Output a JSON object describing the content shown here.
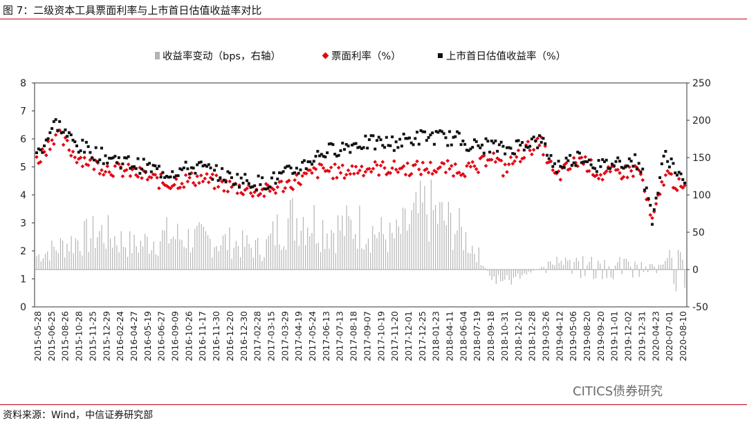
{
  "header": {
    "title": "图 7：二级资本工具票面利率与上市首日估值收益率对比"
  },
  "footer": {
    "source": "资料来源：Wind，中信证券研究部",
    "watermark": "CITICS债券研究"
  },
  "colors": {
    "bar": "#b4b4b4",
    "coupon": "#e30613",
    "valuation": "#111111",
    "accent": "#c0001c"
  },
  "chart_data": {
    "type": "bar+scatter",
    "legend": [
      "收益率变动（bps，右轴）",
      "票面利率（%）",
      "上市首日估值收益率（%）"
    ],
    "y_left": {
      "ticks": [
        "0",
        "1",
        "2",
        "3",
        "4",
        "5",
        "6",
        "7",
        "8"
      ],
      "lim": [
        0,
        8
      ]
    },
    "y_right": {
      "ticks": [
        "250",
        "200",
        "150",
        "100",
        "50",
        "0",
        "-50"
      ],
      "lim": [
        -50,
        250
      ]
    },
    "x_ticks": [
      "2015-05-28",
      "2015-06-25",
      "2015-08-26",
      "2015-10-28",
      "2015-11-25",
      "2015-12-29",
      "2016-02-24",
      "2016-04-27",
      "2016-05-19",
      "2016-06-27",
      "2016-09-09",
      "2016-10-26",
      "2016-11-17",
      "2016-11-30",
      "2016-12-20",
      "2016-12-30",
      "2017-02-28",
      "2017-03-15",
      "2017-03-29",
      "2017-04-19",
      "2017-05-24",
      "2017-06-13",
      "2017-07-13",
      "2017-08-18",
      "2017-09-07",
      "2017-10-19",
      "2017-11-20",
      "2017-12-01",
      "2017-12-25",
      "2018-01-23",
      "2018-04-11",
      "2018-06-04",
      "2018-07-19",
      "2018-09-18",
      "2018-10-31",
      "2018-12-10",
      "2018-12-28",
      "2019-03-26",
      "2019-04-12",
      "2019-05-06",
      "2019-08-20",
      "2019-09-20",
      "2019-11-01",
      "2019-12-02",
      "2019-12-31",
      "2020-04-23",
      "2020-07-01",
      "2020-08-10"
    ],
    "coupon_trend": [
      [
        0,
        5.2
      ],
      [
        0.03,
        6.2
      ],
      [
        0.06,
        5.4
      ],
      [
        0.1,
        5.0
      ],
      [
        0.15,
        4.8
      ],
      [
        0.2,
        4.4
      ],
      [
        0.25,
        4.6
      ],
      [
        0.3,
        4.3
      ],
      [
        0.35,
        4.1
      ],
      [
        0.4,
        4.5
      ],
      [
        0.44,
        4.9
      ],
      [
        0.47,
        4.8
      ],
      [
        0.5,
        4.95
      ],
      [
        0.55,
        4.95
      ],
      [
        0.6,
        4.95
      ],
      [
        0.65,
        4.95
      ],
      [
        0.68,
        4.9
      ],
      [
        0.7,
        5.5
      ],
      [
        0.72,
        4.9
      ],
      [
        0.76,
        5.7
      ],
      [
        0.78,
        5.8
      ],
      [
        0.8,
        4.6
      ],
      [
        0.84,
        5.3
      ],
      [
        0.87,
        4.7
      ],
      [
        0.9,
        4.8
      ],
      [
        0.93,
        4.9
      ],
      [
        0.95,
        3.0
      ],
      [
        0.97,
        4.8
      ],
      [
        1.0,
        4.1
      ]
    ],
    "valuation_trend": [
      [
        0,
        5.4
      ],
      [
        0.03,
        6.6
      ],
      [
        0.06,
        5.8
      ],
      [
        0.1,
        5.4
      ],
      [
        0.15,
        5.1
      ],
      [
        0.2,
        4.8
      ],
      [
        0.25,
        5.0
      ],
      [
        0.3,
        4.6
      ],
      [
        0.35,
        4.4
      ],
      [
        0.4,
        4.9
      ],
      [
        0.44,
        5.5
      ],
      [
        0.47,
        5.7
      ],
      [
        0.5,
        5.85
      ],
      [
        0.55,
        5.85
      ],
      [
        0.6,
        6.1
      ],
      [
        0.65,
        6.0
      ],
      [
        0.68,
        5.7
      ],
      [
        0.7,
        5.8
      ],
      [
        0.72,
        5.6
      ],
      [
        0.76,
        5.9
      ],
      [
        0.78,
        5.9
      ],
      [
        0.8,
        5.0
      ],
      [
        0.84,
        5.4
      ],
      [
        0.87,
        5.0
      ],
      [
        0.9,
        5.2
      ],
      [
        0.93,
        5.2
      ],
      [
        0.95,
        3.2
      ],
      [
        0.97,
        5.5
      ],
      [
        1.0,
        4.4
      ]
    ],
    "bar_trend": [
      [
        0,
        20
      ],
      [
        0.05,
        40
      ],
      [
        0.1,
        55
      ],
      [
        0.15,
        35
      ],
      [
        0.2,
        50
      ],
      [
        0.25,
        45
      ],
      [
        0.3,
        40
      ],
      [
        0.35,
        30
      ],
      [
        0.38,
        70
      ],
      [
        0.41,
        80
      ],
      [
        0.45,
        60
      ],
      [
        0.5,
        65
      ],
      [
        0.55,
        45
      ],
      [
        0.6,
        90
      ],
      [
        0.65,
        60
      ],
      [
        0.68,
        25
      ],
      [
        0.7,
        -10
      ],
      [
        0.72,
        -20
      ],
      [
        0.75,
        -8
      ],
      [
        0.8,
        12
      ],
      [
        0.85,
        14
      ],
      [
        0.9,
        12
      ],
      [
        0.95,
        8
      ],
      [
        1.0,
        30
      ]
    ]
  }
}
